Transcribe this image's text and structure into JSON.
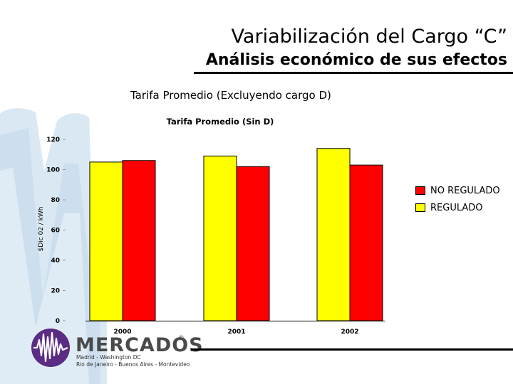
{
  "header": {
    "title": "Variabilización del Cargo “C”",
    "subtitle": "Análisis económico de sus efectos"
  },
  "caption": "Tarifa Promedio (Excluyendo cargo D)",
  "logo": {
    "name": "MERCADOS",
    "registered": "®",
    "line1": "Madrid - Washington DC",
    "line2": "Rio de Janeiro - Buenos Aires - Montevideo"
  },
  "colors": {
    "regulado": "#ffff00",
    "no_regulado": "#ff0000",
    "background_watermark": "#d7e6f1"
  },
  "chart_data": {
    "type": "bar",
    "title": "Tarifa Promedio (Sin D)",
    "xlabel": "",
    "ylabel": "$Dic 02 / kWh",
    "ylim": [
      0,
      120
    ],
    "yticks": [
      "0",
      "20",
      "40",
      "60",
      "80",
      "100",
      "120"
    ],
    "categories": [
      "2000",
      "2001",
      "2002"
    ],
    "series": [
      {
        "name": "REGULADO",
        "values": [
          105,
          109,
          114
        ],
        "color": "#ffff00"
      },
      {
        "name": "NO REGULADO",
        "values": [
          106,
          102,
          103
        ],
        "color": "#ff0000"
      }
    ],
    "legend": {
      "position": "right",
      "entries": [
        "NO REGULADO",
        "REGULADO"
      ]
    },
    "grid": false
  }
}
